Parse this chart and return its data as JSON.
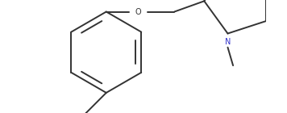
{
  "bg_color": "#ffffff",
  "line_color": "#333333",
  "n_color": "#3333cc",
  "s_color": "#b87700",
  "figsize": [
    3.56,
    1.4
  ],
  "dpi": 100,
  "linewidth": 1.4,
  "fontsize": 7.0,
  "font_family": "Arial"
}
